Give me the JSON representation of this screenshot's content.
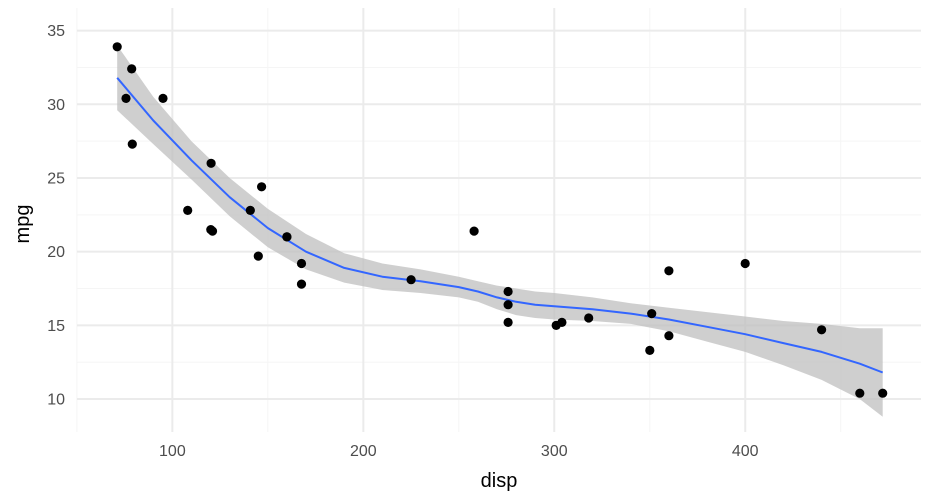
{
  "chart_data": {
    "type": "scatter",
    "title": "",
    "xlabel": "disp",
    "ylabel": "mpg",
    "xlim": [
      50.05,
      492.05
    ],
    "ylim": [
      7.765,
      36.535
    ],
    "x_ticks": [
      100,
      200,
      300,
      400
    ],
    "x_minor_ticks": [
      50,
      150,
      250,
      350,
      450
    ],
    "y_ticks": [
      10,
      15,
      20,
      25,
      30,
      35
    ],
    "y_minor_ticks": [
      12.5,
      17.5,
      22.5,
      27.5,
      32.5
    ],
    "grid": true,
    "legend": "none",
    "colors": {
      "points": "#000000",
      "smooth_line": "#3366ff",
      "confidence_band": "#bfbfbf",
      "grid_major": "#ebebeb",
      "grid_minor": "#f5f5f5"
    },
    "points": {
      "x": [
        160,
        160,
        108,
        258,
        360,
        225,
        360,
        146.7,
        140.8,
        167.6,
        167.6,
        275.8,
        275.8,
        275.8,
        472,
        460,
        440,
        78.7,
        75.7,
        71.1,
        120.1,
        318,
        304,
        350,
        400,
        79,
        120.3,
        95.1,
        351,
        145,
        301,
        121
      ],
      "y": [
        21,
        21,
        22.8,
        21.4,
        18.7,
        18.1,
        14.3,
        24.4,
        22.8,
        19.2,
        17.8,
        16.4,
        17.3,
        15.2,
        10.4,
        10.4,
        14.7,
        32.4,
        30.4,
        33.9,
        21.5,
        15.5,
        15.2,
        13.3,
        19.2,
        27.3,
        26,
        30.4,
        15.8,
        19.7,
        15,
        21.4
      ]
    },
    "smooth": {
      "name": "",
      "x": [
        71.1,
        90,
        110,
        130,
        150,
        170,
        190,
        210,
        230,
        250,
        260,
        270,
        280,
        290,
        300,
        320,
        340,
        360,
        380,
        400,
        420,
        440,
        460,
        472
      ],
      "y": [
        31.8,
        28.9,
        26.2,
        23.7,
        21.6,
        20.0,
        18.9,
        18.3,
        18.0,
        17.6,
        17.3,
        16.9,
        16.6,
        16.4,
        16.3,
        16.1,
        15.8,
        15.4,
        14.9,
        14.4,
        13.8,
        13.2,
        12.4,
        11.8
      ],
      "lower": [
        29.6,
        27.3,
        24.9,
        22.4,
        20.3,
        18.8,
        17.9,
        17.4,
        17.2,
        16.9,
        16.6,
        16.1,
        15.7,
        15.5,
        15.4,
        15.3,
        15.1,
        14.6,
        13.9,
        13.2,
        12.3,
        11.3,
        10.0,
        8.8
      ],
      "upper": [
        34.0,
        30.5,
        27.5,
        25.0,
        22.9,
        21.2,
        19.9,
        19.2,
        18.8,
        18.3,
        18.0,
        17.7,
        17.5,
        17.3,
        17.2,
        16.9,
        16.5,
        16.2,
        15.9,
        15.6,
        15.3,
        15.1,
        14.8,
        14.8
      ]
    }
  }
}
